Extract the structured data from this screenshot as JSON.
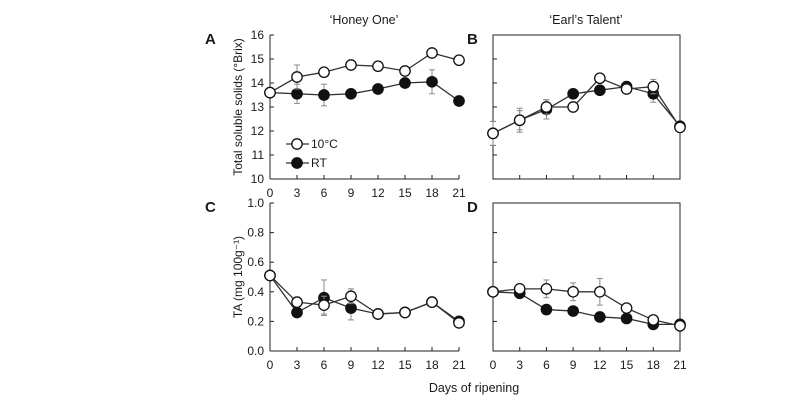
{
  "figure": {
    "col_titles": [
      "‘Honey One’",
      "‘Earl’s Talent’"
    ],
    "xlabel": "Days of ripening",
    "ylabel_top": "Total soluble solids (°Brix)",
    "ylabel_bottom": "TA (mg 100g⁻¹)"
  },
  "chart_data": [
    {
      "type": "line",
      "panel": "A",
      "title": "‘Honey One’",
      "x": [
        0,
        3,
        6,
        9,
        12,
        15,
        18,
        21
      ],
      "xlim": [
        0,
        21
      ],
      "ylim": [
        10,
        16
      ],
      "xticks": [
        "0",
        "3",
        "6",
        "9",
        "12",
        "15",
        "18",
        "21"
      ],
      "yticks": [
        "10",
        "11",
        "12",
        "13",
        "14",
        "15",
        "16"
      ],
      "ylabel": "Total soluble solids (°Brix)",
      "legend": [
        "10°C",
        "RT"
      ],
      "series": [
        {
          "name": "10°C",
          "marker": "open",
          "values": [
            13.6,
            14.25,
            14.45,
            14.75,
            14.7,
            14.5,
            15.25,
            14.95
          ],
          "errors": [
            0.15,
            0.5,
            0.15,
            0.15,
            0.1,
            0.15,
            0.15,
            0.15
          ]
        },
        {
          "name": "RT",
          "marker": "filled",
          "values": [
            13.6,
            13.55,
            13.5,
            13.55,
            13.75,
            14.0,
            14.05,
            13.25
          ],
          "errors": [
            0.15,
            0.4,
            0.45,
            0.1,
            0.1,
            0.15,
            0.5,
            0.1
          ]
        }
      ]
    },
    {
      "type": "line",
      "panel": "B",
      "title": "‘Earl’s Talent’",
      "x": [
        0,
        3,
        6,
        9,
        12,
        15,
        18,
        21
      ],
      "xlim": [
        0,
        21
      ],
      "ylim": [
        10,
        16
      ],
      "xticks": [],
      "yticks": [],
      "series": [
        {
          "name": "10°C",
          "marker": "open",
          "values": [
            11.9,
            12.45,
            13.0,
            13.0,
            14.2,
            13.75,
            13.85,
            12.15
          ],
          "errors": [
            0.5,
            0.5,
            0.3,
            0.2,
            0.15,
            0.15,
            0.3,
            0.1
          ]
        },
        {
          "name": "RT",
          "marker": "filled",
          "values": [
            11.9,
            12.45,
            12.9,
            13.55,
            13.7,
            13.85,
            13.55,
            12.2
          ],
          "errors": [
            0.5,
            0.4,
            0.4,
            0.15,
            0.15,
            0.15,
            0.35,
            0.1
          ]
        }
      ]
    },
    {
      "type": "line",
      "panel": "C",
      "x": [
        0,
        3,
        6,
        9,
        12,
        15,
        18,
        21
      ],
      "xlim": [
        0,
        21
      ],
      "ylim": [
        0,
        1.0
      ],
      "xticks": [
        "0",
        "3",
        "6",
        "9",
        "12",
        "15",
        "18",
        "21"
      ],
      "yticks": [
        "0.0",
        "0.2",
        "0.4",
        "0.6",
        "0.8",
        "1.0"
      ],
      "ylabel": "TA (mg 100g⁻¹)",
      "series": [
        {
          "name": "10°C",
          "marker": "open",
          "values": [
            0.51,
            0.33,
            0.31,
            0.37,
            0.25,
            0.26,
            0.33,
            0.19
          ],
          "errors": [
            0.02,
            0.03,
            0.06,
            0.05,
            0.02,
            0.02,
            0.03,
            0.03
          ]
        },
        {
          "name": "RT",
          "marker": "filled",
          "values": [
            0.51,
            0.26,
            0.36,
            0.29,
            0.25,
            0.26,
            0.33,
            0.2
          ],
          "errors": [
            0.03,
            0.03,
            0.12,
            0.08,
            0.02,
            0.02,
            0.03,
            0.03
          ]
        }
      ]
    },
    {
      "type": "line",
      "panel": "D",
      "x": [
        0,
        3,
        6,
        9,
        12,
        15,
        18,
        21
      ],
      "xlim": [
        0,
        21
      ],
      "ylim": [
        0,
        1.0
      ],
      "xticks": [
        "0",
        "3",
        "6",
        "9",
        "12",
        "15",
        "18",
        "21"
      ],
      "yticks": [],
      "series": [
        {
          "name": "10°C",
          "marker": "open",
          "values": [
            0.4,
            0.42,
            0.42,
            0.4,
            0.4,
            0.29,
            0.21,
            0.17
          ],
          "errors": [
            0.03,
            0.03,
            0.06,
            0.06,
            0.09,
            0.02,
            0.02,
            0.02
          ]
        },
        {
          "name": "RT",
          "marker": "filled",
          "values": [
            0.4,
            0.39,
            0.28,
            0.27,
            0.23,
            0.22,
            0.18,
            0.18
          ],
          "errors": [
            0.03,
            0.03,
            0.02,
            0.02,
            0.02,
            0.02,
            0.02,
            0.02
          ]
        }
      ]
    }
  ]
}
